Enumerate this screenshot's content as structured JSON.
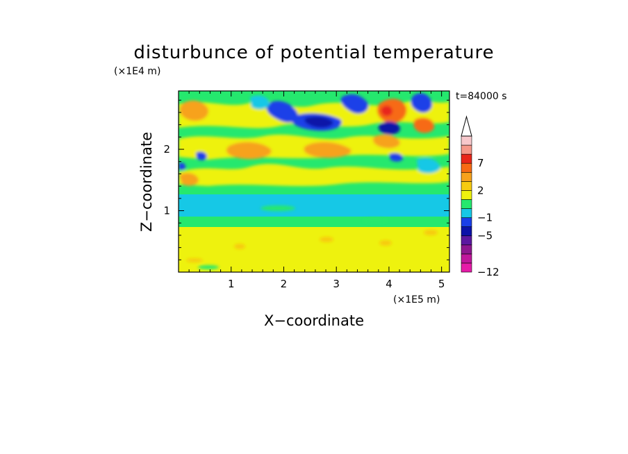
{
  "chart_data": {
    "type": "heatmap",
    "title": "disturbunce of potential temperature",
    "xlabel": "X−coordinate",
    "ylabel": "Z−coordinate",
    "x_unit": "(×1E5 m)",
    "y_unit": "(×1E4 m)",
    "time_label": "t=84000 s",
    "xlim": [
      0,
      5.15
    ],
    "ylim": [
      0,
      2.95
    ],
    "xticks": [
      1,
      2,
      3,
      4,
      5
    ],
    "yticks": [
      1,
      2
    ],
    "xtick_labels": [
      "1",
      "2",
      "3",
      "4",
      "5"
    ],
    "ytick_labels": [
      "1",
      "2"
    ],
    "colorbar": {
      "levels": [
        "−12",
        "−5",
        "−1",
        "2",
        "7"
      ],
      "colors": [
        "#e51ca8",
        "#c0179c",
        "#8e178f",
        "#5b18a0",
        "#0b12a8",
        "#1a3fe8",
        "#16c8e6",
        "#25e86e",
        "#eef20e",
        "#f7cb10",
        "#f7a21c",
        "#f76a14",
        "#e8261a",
        "#f5988a",
        "#f7c8cc"
      ],
      "extend": "max"
    },
    "bands": [
      {
        "z_range": [
          0.0,
          0.8
        ],
        "dominant_value": "0 to 1 (yellow)"
      },
      {
        "z_range": [
          0.8,
          1.2
        ],
        "dominant_value": "−1 to 0 (cyan)"
      },
      {
        "z_range": [
          1.2,
          1.5
        ],
        "dominant_value": "green"
      },
      {
        "z_range": [
          1.5,
          2.95
        ],
        "dominant_value": "mixed −5 to 7"
      }
    ]
  }
}
